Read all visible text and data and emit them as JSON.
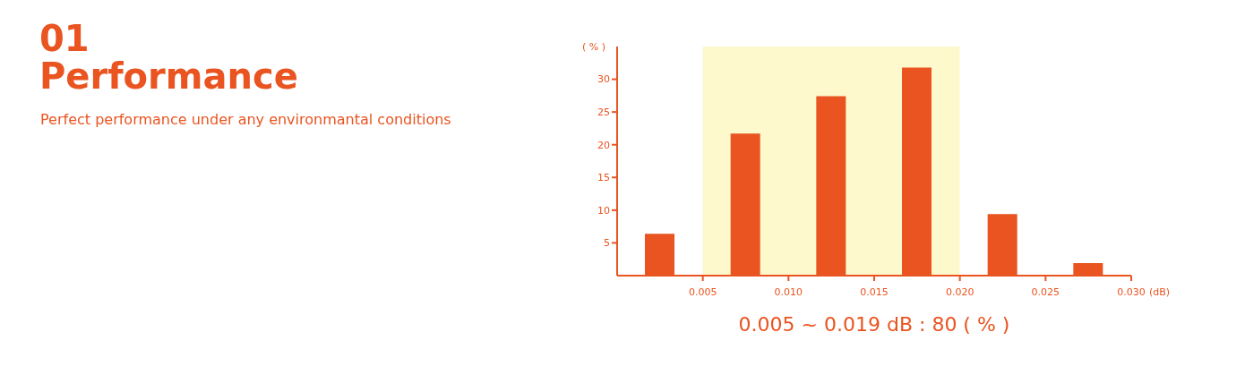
{
  "chart_data": {
    "type": "bar",
    "title": "01\nPerformance",
    "subtitle": "Perfect performance under any environmantal conditions",
    "ylabel": "( % )",
    "xlabel": "(dB)",
    "x": [
      0.0025,
      0.0075,
      0.0125,
      0.0175,
      0.0225,
      0.0275
    ],
    "values": [
      6.4,
      21.7,
      27.4,
      31.8,
      9.4,
      1.9
    ],
    "color": "#e95420",
    "xlim": [
      0,
      0.03
    ],
    "xticks": [
      {
        "value": 0.005,
        "label": "0.005"
      },
      {
        "value": 0.01,
        "label": "0.010"
      },
      {
        "value": 0.015,
        "label": "0.015"
      },
      {
        "value": 0.02,
        "label": "0.020"
      },
      {
        "value": 0.025,
        "label": "0.025"
      },
      {
        "value": 0.03,
        "label": "0.030"
      }
    ],
    "ylim": [
      0,
      35
    ],
    "yticks": [
      5,
      10,
      15,
      20,
      25,
      30
    ],
    "bands": [
      {
        "axis": "x",
        "from": 0.005,
        "to": 0.02,
        "color": "#fdf9cd"
      }
    ],
    "annotations": [
      "0.005 ~ 0.019 dB : 80 ( % )"
    ],
    "grid": false,
    "legend": false
  }
}
